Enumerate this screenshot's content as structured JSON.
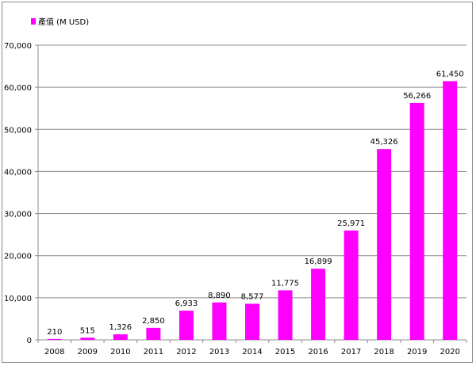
{
  "chart_data": {
    "type": "bar",
    "title": "",
    "xlabel": "",
    "ylabel": "",
    "legend": {
      "entries": [
        "產值 (M USD)"
      ],
      "placement": "top-left"
    },
    "categories": [
      "2008",
      "2009",
      "2010",
      "2011",
      "2012",
      "2013",
      "2014",
      "2015",
      "2016",
      "2017",
      "2018",
      "2019",
      "2020"
    ],
    "series": [
      {
        "name": "產值 (M USD)",
        "values": [
          210,
          515,
          1326,
          2850,
          6933,
          8890,
          8577,
          11775,
          16899,
          25971,
          45326,
          56266,
          61450
        ],
        "color": "#ff00ff"
      }
    ],
    "data_labels": [
      "210",
      "515",
      "1,326",
      "2,850",
      "6,933",
      "8,890",
      "8,577",
      "11,775",
      "16,899",
      "25,971",
      "45,326",
      "56,266",
      "61,450"
    ],
    "ylim": [
      0,
      70000
    ],
    "yticks": [
      0,
      10000,
      20000,
      30000,
      40000,
      50000,
      60000,
      70000
    ],
    "ytick_labels": [
      "0",
      "10,000",
      "20,000",
      "30,000",
      "40,000",
      "50,000",
      "60,000",
      "70,000"
    ],
    "grid": true
  }
}
